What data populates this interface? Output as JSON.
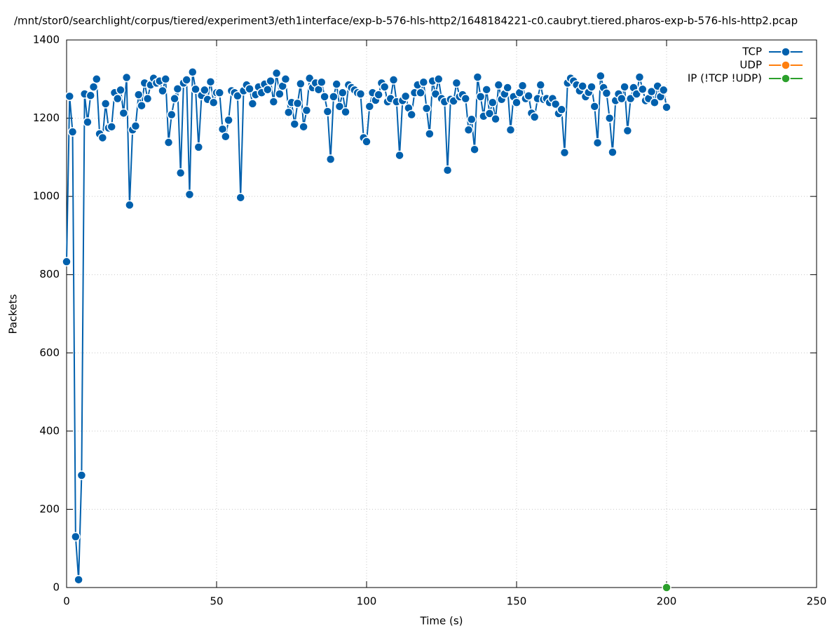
{
  "chart_data": {
    "type": "line",
    "title": "/mnt/stor0/searchlight/corpus/tiered/experiment3/eth1interface/exp-b-576-hls-http2/1648184221-c0.caubryt.tiered.pharos-exp-b-576-hls-http2.pcap",
    "xlabel": "Time (s)",
    "ylabel": "Packets",
    "xlim": [
      0,
      250
    ],
    "ylim": [
      0,
      1400
    ],
    "xticks": [
      0,
      50,
      100,
      150,
      200,
      250
    ],
    "yticks": [
      0,
      200,
      400,
      600,
      800,
      1000,
      1200,
      1400
    ],
    "grid": true,
    "legend": "upper right",
    "series": [
      {
        "name": "TCP",
        "color": "#0060ad",
        "x": [
          0,
          1,
          2,
          3,
          4,
          5,
          6,
          7,
          8,
          9,
          10,
          11,
          12,
          13,
          14,
          15,
          16,
          17,
          18,
          19,
          20,
          21,
          22,
          23,
          24,
          25,
          26,
          27,
          28,
          29,
          30,
          31,
          32,
          33,
          34,
          35,
          36,
          37,
          38,
          39,
          40,
          41,
          42,
          43,
          44,
          45,
          46,
          47,
          48,
          49,
          50,
          51,
          52,
          53,
          54,
          55,
          56,
          57,
          58,
          59,
          60,
          61,
          62,
          63,
          64,
          65,
          66,
          67,
          68,
          69,
          70,
          71,
          72,
          73,
          74,
          75,
          76,
          77,
          78,
          79,
          80,
          81,
          82,
          83,
          84,
          85,
          86,
          87,
          88,
          89,
          90,
          91,
          92,
          93,
          94,
          95,
          96,
          97,
          98,
          99,
          100,
          101,
          102,
          103,
          104,
          105,
          106,
          107,
          108,
          109,
          110,
          111,
          112,
          113,
          114,
          115,
          116,
          117,
          118,
          119,
          120,
          121,
          122,
          123,
          124,
          125,
          126,
          127,
          128,
          129,
          130,
          131,
          132,
          133,
          134,
          135,
          136,
          137,
          138,
          139,
          140,
          141,
          142,
          143,
          144,
          145,
          146,
          147,
          148,
          149,
          150,
          151,
          152,
          153,
          154,
          155,
          156,
          157,
          158,
          159,
          160,
          161,
          162,
          163,
          164,
          165,
          166,
          167,
          168,
          169,
          170,
          171,
          172,
          173,
          174,
          175,
          176,
          177,
          178,
          179,
          180,
          181,
          182,
          183,
          184,
          185,
          186,
          187,
          188,
          189,
          190,
          191,
          192,
          193,
          194,
          195,
          196,
          197,
          198,
          199,
          200
        ],
        "values": [
          833,
          1256,
          1165,
          130,
          20,
          287,
          1262,
          1190,
          1258,
          1280,
          1300,
          1160,
          1150,
          1237,
          1175,
          1178,
          1265,
          1250,
          1272,
          1213,
          1304,
          978,
          1170,
          1180,
          1260,
          1232,
          1290,
          1250,
          1285,
          1302,
          1290,
          1295,
          1270,
          1300,
          1138,
          1209,
          1250,
          1275,
          1060,
          1290,
          1298,
          1005,
          1318,
          1274,
          1126,
          1258,
          1272,
          1248,
          1293,
          1240,
          1265,
          1265,
          1172,
          1153,
          1195,
          1270,
          1265,
          1257,
          997,
          1270,
          1285,
          1275,
          1237,
          1260,
          1280,
          1265,
          1287,
          1273,
          1295,
          1242,
          1315,
          1262,
          1282,
          1300,
          1215,
          1240,
          1185,
          1238,
          1288,
          1178,
          1220,
          1302,
          1278,
          1290,
          1273,
          1292,
          1255,
          1217,
          1095,
          1255,
          1287,
          1230,
          1265,
          1216,
          1285,
          1278,
          1272,
          1265,
          1262,
          1150,
          1140,
          1230,
          1265,
          1246,
          1260,
          1290,
          1280,
          1242,
          1250,
          1298,
          1242,
          1105,
          1245,
          1256,
          1226,
          1209,
          1265,
          1285,
          1265,
          1292,
          1225,
          1160,
          1295,
          1262,
          1300,
          1250,
          1242,
          1067,
          1248,
          1244,
          1290,
          1255,
          1260,
          1250,
          1170,
          1197,
          1120,
          1305,
          1255,
          1205,
          1273,
          1212,
          1240,
          1198,
          1285,
          1248,
          1262,
          1278,
          1170,
          1255,
          1240,
          1265,
          1283,
          1250,
          1257,
          1213,
          1203,
          1250,
          1285,
          1248,
          1250,
          1240,
          1250,
          1236,
          1212,
          1222,
          1112,
          1290,
          1302,
          1295,
          1285,
          1270,
          1282,
          1255,
          1266,
          1280,
          1230,
          1137,
          1308,
          1278,
          1264,
          1200,
          1113,
          1245,
          1262,
          1250,
          1280,
          1168,
          1250,
          1278,
          1262,
          1305,
          1274,
          1245,
          1250,
          1268,
          1240,
          1282,
          1255,
          1272,
          1228
        ]
      },
      {
        "name": "UDP",
        "color": "#ff7f0e",
        "x": [],
        "values": []
      },
      {
        "name": "IP (!TCP  !UDP)",
        "color": "#2ca02c",
        "x": [
          200
        ],
        "values": [
          0
        ]
      }
    ]
  }
}
